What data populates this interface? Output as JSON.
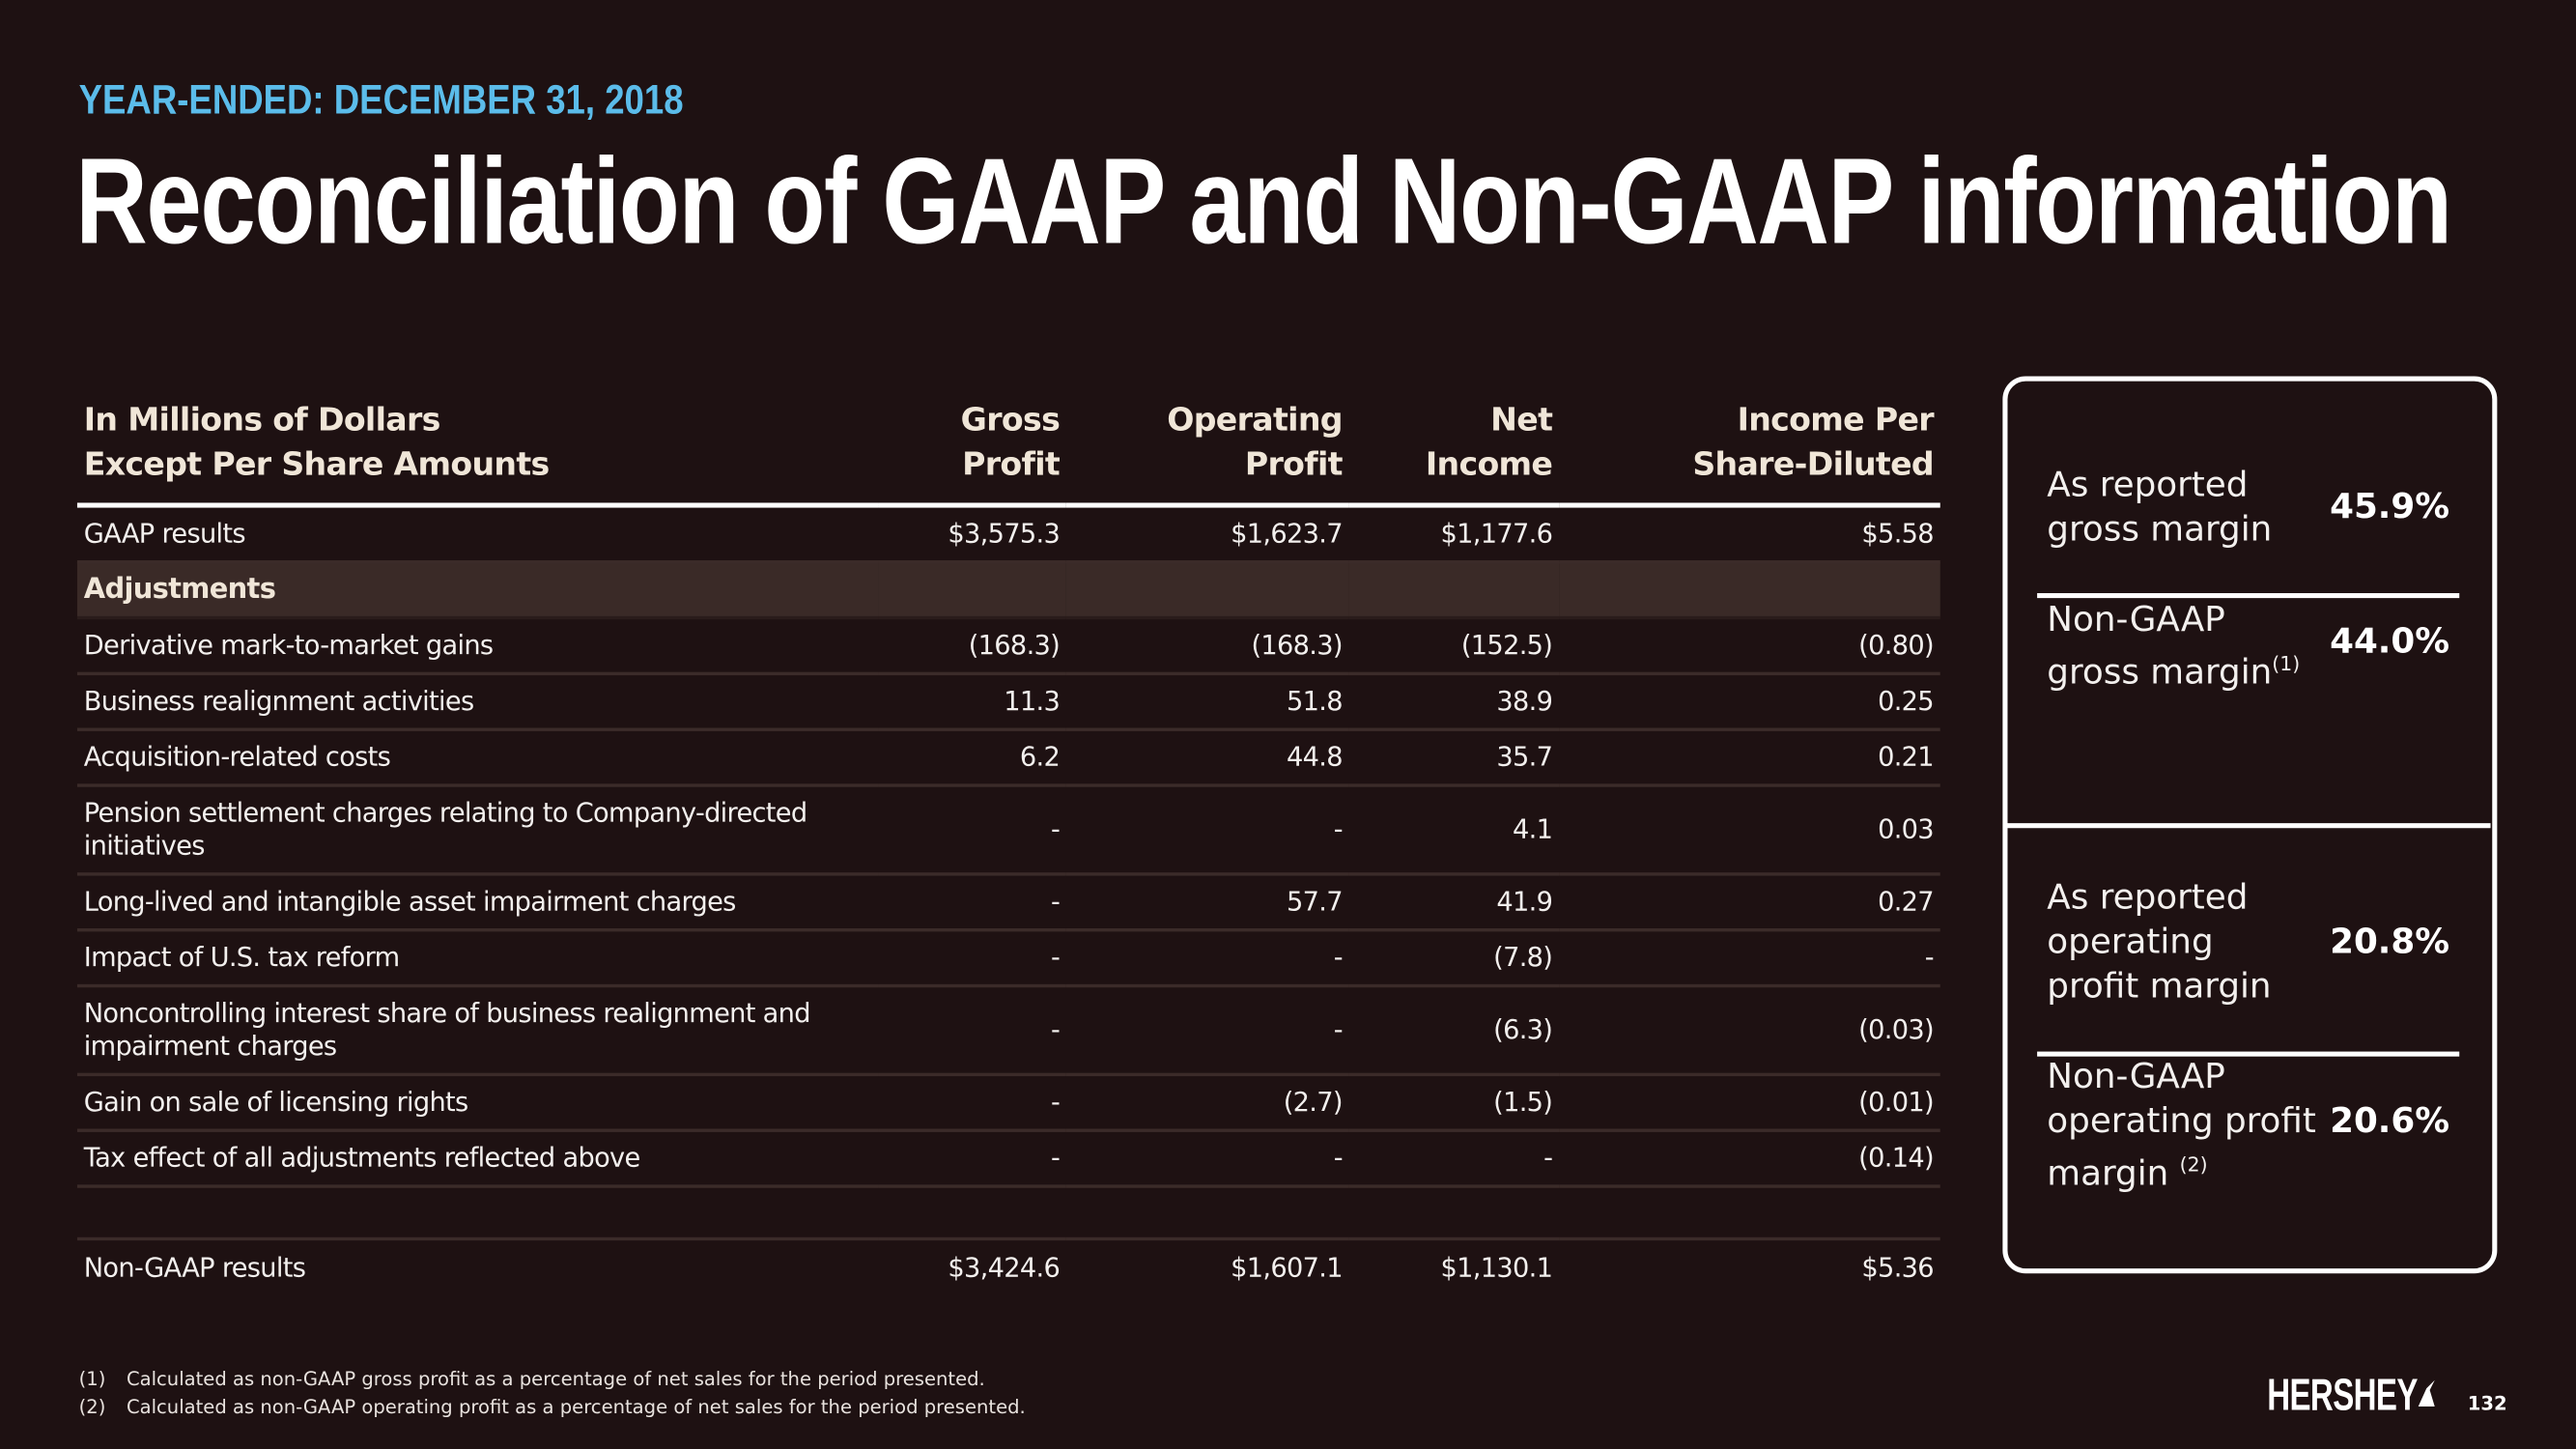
{
  "header": {
    "kicker": "YEAR-ENDED: DECEMBER 31, 2018",
    "title": "Reconciliation of GAAP and Non-GAAP information"
  },
  "table": {
    "columns": [
      [
        "In Millions of Dollars",
        "Except Per Share Amounts"
      ],
      [
        "Gross",
        "Profit"
      ],
      [
        "Operating",
        "Profit"
      ],
      [
        "Net",
        "Income"
      ],
      [
        "Income Per",
        "Share-Diluted"
      ]
    ],
    "gaap": [
      "GAAP results",
      "$3,575.3",
      "$1,623.7",
      "$1,177.6",
      "$5.58"
    ],
    "section": "Adjustments",
    "adjustments": [
      [
        "Derivative mark-to-market gains",
        "(168.3)",
        "(168.3)",
        "(152.5)",
        "(0.80)"
      ],
      [
        "Business realignment activities",
        "11.3",
        "51.8",
        "38.9",
        "0.25"
      ],
      [
        "Acquisition-related costs",
        "6.2",
        "44.8",
        "35.7",
        "0.21"
      ],
      [
        "Pension settlement charges relating to Company-directed initiatives",
        "-",
        "-",
        "4.1",
        "0.03"
      ],
      [
        "Long-lived and intangible asset impairment charges",
        "-",
        "57.7",
        "41.9",
        "0.27"
      ],
      [
        "Impact of U.S. tax reform",
        "-",
        "-",
        "(7.8)",
        "-"
      ],
      [
        "Noncontrolling interest share of business realignment and impairment charges",
        "-",
        "-",
        "(6.3)",
        "(0.03)"
      ],
      [
        "Gain on sale of licensing rights",
        "-",
        "(2.7)",
        "(1.5)",
        "(0.01)"
      ],
      [
        "Tax effect of all adjustments reflected above",
        "-",
        "-",
        "-",
        "(0.14)"
      ]
    ],
    "total": [
      "Non-GAAP results",
      "$3,424.6",
      "$1,607.1",
      "$1,130.1",
      "$5.36"
    ]
  },
  "panel": [
    [
      {
        "label": [
          "As reported",
          "gross margin"
        ],
        "value": "45.9%"
      },
      {
        "label": [
          "Non-GAAP",
          "gross margin"
        ],
        "note": "(1)",
        "value": "44.0%"
      }
    ],
    [
      {
        "label": [
          "As reported",
          "operating",
          "profit margin"
        ],
        "value": "20.8%"
      },
      {
        "label": [
          "Non-GAAP",
          "operating profit",
          "margin "
        ],
        "note": "(2)",
        "value": "20.6%"
      }
    ]
  ],
  "footnotes": [
    {
      "marker": "(1)",
      "text": "Calculated as non-GAAP gross profit as a percentage of net sales for the period presented."
    },
    {
      "marker": "(2)",
      "text": "Calculated as non-GAAP operating profit as a percentage of net sales for the period presented."
    }
  ],
  "brand": "HERSHEY",
  "page_number": "132"
}
